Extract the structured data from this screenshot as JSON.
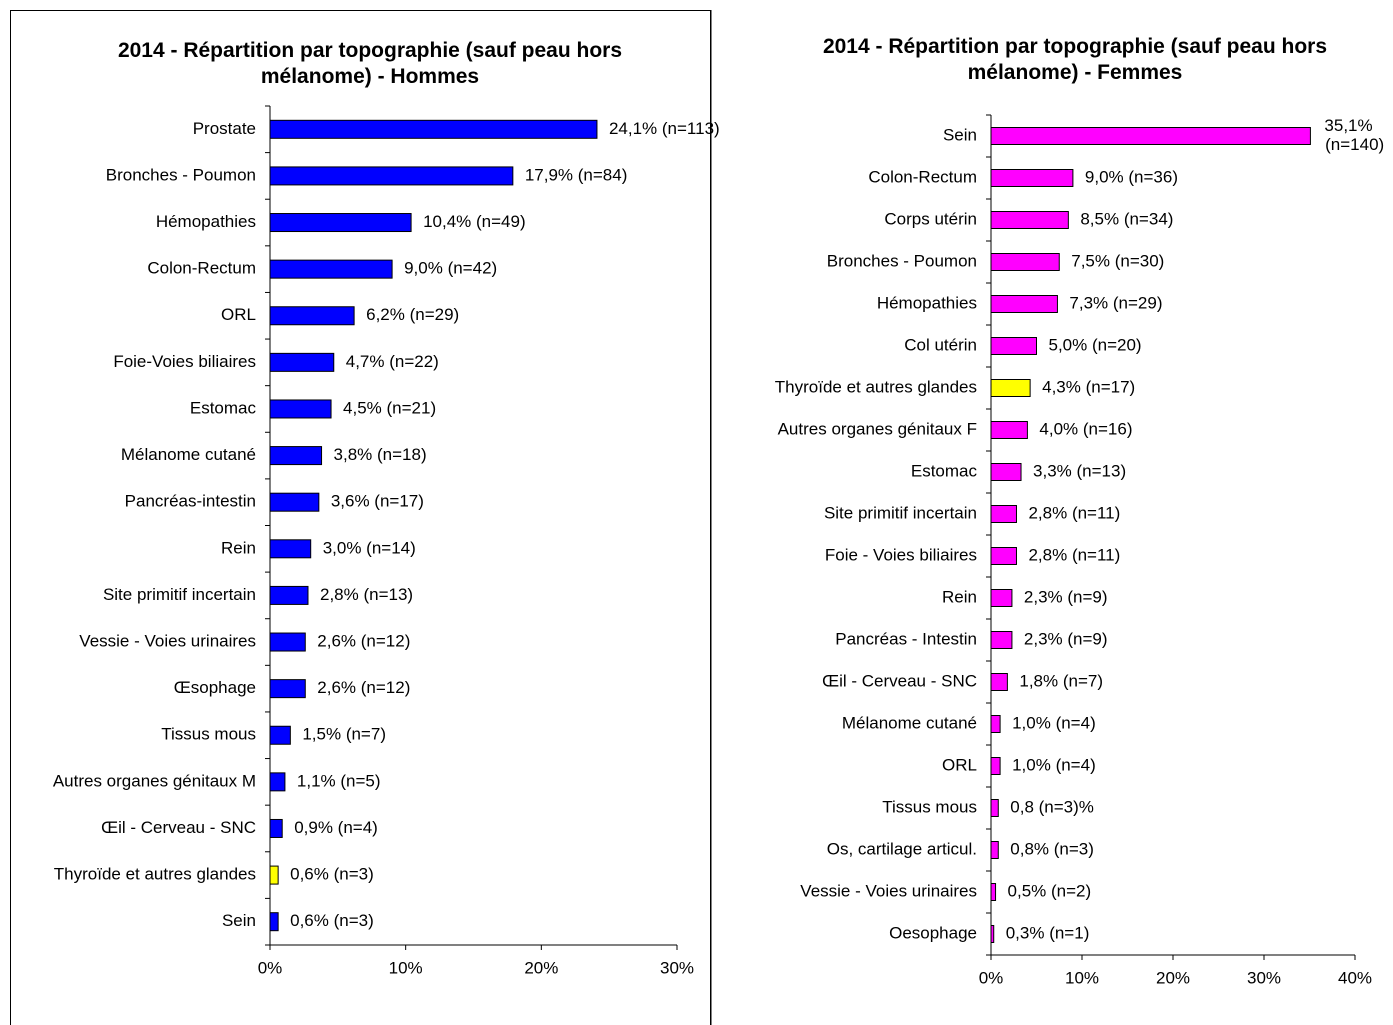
{
  "chart_data": [
    {
      "type": "bar",
      "orientation": "horizontal",
      "title": "2014 - Répartition par topographie (sauf peau hors mélanome) - Hommes",
      "categories": [
        "Prostate",
        "Bronches - Poumon",
        "Hémopathies",
        "Colon-Rectum",
        "ORL",
        "Foie-Voies biliaires",
        "Estomac",
        "Mélanome cutané",
        "Pancréas-intestin",
        "Rein",
        "Site primitif incertain",
        "Vessie - Voies urinaires",
        "Œsophage",
        "Tissus mous",
        "Autres organes génitaux M",
        "Œil - Cerveau - SNC",
        "Thyroïde et autres glandes",
        "Sein"
      ],
      "values": [
        24.1,
        17.9,
        10.4,
        9.0,
        6.2,
        4.7,
        4.5,
        3.8,
        3.6,
        3.0,
        2.8,
        2.6,
        2.6,
        1.5,
        1.1,
        0.9,
        0.6,
        0.6
      ],
      "value_labels": [
        "24,1% (n=113)",
        "17,9% (n=84)",
        "10,4% (n=49)",
        "9,0% (n=42)",
        "6,2% (n=29)",
        "4,7% (n=22)",
        "4,5% (n=21)",
        "3,8% (n=18)",
        "3,6% (n=17)",
        "3,0% (n=14)",
        "2,8% (n=13)",
        "2,6% (n=12)",
        "2,6% (n=12)",
        "1,5% (n=7)",
        "1,1% (n=5)",
        "0,9% (n=4)",
        "0,6% (n=3)",
        "0,6% (n=3)"
      ],
      "colors": [
        "#0000ff",
        "#0000ff",
        "#0000ff",
        "#0000ff",
        "#0000ff",
        "#0000ff",
        "#0000ff",
        "#0000ff",
        "#0000ff",
        "#0000ff",
        "#0000ff",
        "#0000ff",
        "#0000ff",
        "#0000ff",
        "#0000ff",
        "#0000ff",
        "#ffff00",
        "#0000ff"
      ],
      "xlim": [
        0,
        30
      ],
      "xticks": [
        {
          "value": 0,
          "label": "0%"
        },
        {
          "value": 10,
          "label": "10%"
        },
        {
          "value": 20,
          "label": "20%"
        },
        {
          "value": 30,
          "label": "30%"
        }
      ]
    },
    {
      "type": "bar",
      "orientation": "horizontal",
      "title": "2014 - Répartition par topographie (sauf peau hors mélanome) - Femmes",
      "categories": [
        "Sein",
        "Colon-Rectum",
        "Corps utérin",
        "Bronches - Poumon",
        "Hémopathies",
        "Col utérin",
        "Thyroïde et autres glandes",
        "Autres organes génitaux F",
        "Estomac",
        "Site primitif incertain",
        "Foie - Voies biliaires",
        "Rein",
        "Pancréas - Intestin",
        "Œil - Cerveau - SNC",
        "Mélanome cutané",
        "ORL",
        "Tissus mous",
        "Os, cartilage articul.",
        "Vessie - Voies urinaires",
        "Oesophage"
      ],
      "values": [
        35.1,
        9.0,
        8.5,
        7.5,
        7.3,
        5.0,
        4.3,
        4.0,
        3.3,
        2.8,
        2.8,
        2.3,
        2.3,
        1.8,
        1.0,
        1.0,
        0.8,
        0.8,
        0.5,
        0.3
      ],
      "value_labels": [
        "35,1% (n=140)",
        "9,0% (n=36)",
        "8,5% (n=34)",
        "7,5% (n=30)",
        "7,3% (n=29)",
        "5,0% (n=20)",
        "4,3% (n=17)",
        "4,0% (n=16)",
        "3,3% (n=13)",
        "2,8% (n=11)",
        "2,8% (n=11)",
        "2,3% (n=9)",
        "2,3% (n=9)",
        "1,8% (n=7)",
        "1,0% (n=4)",
        "1,0% (n=4)",
        "0,8 (n=3)%",
        "0,8% (n=3)",
        "0,5% (n=2)",
        "0,3% (n=1)"
      ],
      "colors": [
        "#ff00ff",
        "#ff00ff",
        "#ff00ff",
        "#ff00ff",
        "#ff00ff",
        "#ff00ff",
        "#ffff00",
        "#ff00ff",
        "#ff00ff",
        "#ff00ff",
        "#ff00ff",
        "#ff00ff",
        "#ff00ff",
        "#ff00ff",
        "#ff00ff",
        "#ff00ff",
        "#ff00ff",
        "#ff00ff",
        "#ff00ff",
        "#ff00ff"
      ],
      "xlim": [
        0,
        40
      ],
      "xticks": [
        {
          "value": 0,
          "label": "0%"
        },
        {
          "value": 10,
          "label": "10%"
        },
        {
          "value": 20,
          "label": "20%"
        },
        {
          "value": 30,
          "label": "30%"
        },
        {
          "value": 40,
          "label": "40%"
        }
      ]
    }
  ]
}
